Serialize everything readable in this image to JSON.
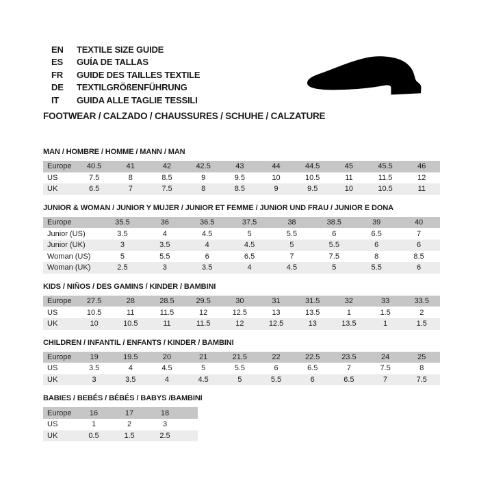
{
  "header": {
    "languages": [
      {
        "code": "EN",
        "text": "TEXTILE SIZE GUIDE"
      },
      {
        "code": "ES",
        "text": "GUÍA DE TALLAS"
      },
      {
        "code": "FR",
        "text": "GUIDE DES TAILLES TEXTILE"
      },
      {
        "code": "DE",
        "text": "TEXTILGRÖßENFÜHRUNG"
      },
      {
        "code": "IT",
        "text": "GUIDA ALLE TAGLIE TESSILI"
      }
    ],
    "category_heading": "FOOTWEAR / CALZADO / CHAUSSURES / SCHUHE / CALZATURE",
    "shoe_icon": "dress-shoe-silhouette"
  },
  "colors": {
    "background": "#ffffff",
    "text": "#1a1a1a",
    "header_row_bg": "#c6c6c6",
    "stripe_row_bg": "#ececec",
    "shoe": "#000000"
  },
  "tables": [
    {
      "title": "MAN / HOMBRE / HOMME / MANN / MAN",
      "rows": [
        {
          "label": "Europe",
          "values": [
            "40.5",
            "41",
            "42",
            "42.5",
            "43",
            "44",
            "44.5",
            "45",
            "45.5",
            "46"
          ]
        },
        {
          "label": "US",
          "values": [
            "7.5",
            "8",
            "8.5",
            "9",
            "9.5",
            "10",
            "10.5",
            "11",
            "11.5",
            "12"
          ]
        },
        {
          "label": "UK",
          "values": [
            "6.5",
            "7",
            "7.5",
            "8",
            "8.5",
            "9",
            "9.5",
            "10",
            "10.5",
            "11"
          ]
        }
      ]
    },
    {
      "title": "JUNIOR & WOMAN / JUNIOR Y MUJER / JUNIOR ET FEMME / JUNIOR UND FRAU / JUNIOR E DONA",
      "rows": [
        {
          "label": "Europe",
          "values": [
            "35.5",
            "36",
            "36.5",
            "37.5",
            "38",
            "38.5",
            "39",
            "40"
          ]
        },
        {
          "label": "Junior (US)",
          "values": [
            "3.5",
            "4",
            "4.5",
            "5",
            "5.5",
            "6",
            "6.5",
            "7"
          ]
        },
        {
          "label": "Junior (UK)",
          "values": [
            "3",
            "3.5",
            "4",
            "4.5",
            "5",
            "5.5",
            "6",
            "6"
          ]
        },
        {
          "label": "Woman (US)",
          "values": [
            "5",
            "5.5",
            "6",
            "6.5",
            "7",
            "7.5",
            "8",
            "8.5"
          ]
        },
        {
          "label": "Woman (UK)",
          "values": [
            "2.5",
            "3",
            "3.5",
            "4",
            "4.5",
            "5",
            "5.5",
            "6"
          ]
        }
      ]
    },
    {
      "title": "KIDS / NIÑOS / DES GAMINS / KINDER / BAMBINI",
      "rows": [
        {
          "label": "Europe",
          "values": [
            "27.5",
            "28",
            "28.5",
            "29.5",
            "30",
            "31",
            "31.5",
            "32",
            "33",
            "33.5"
          ]
        },
        {
          "label": "US",
          "values": [
            "10.5",
            "11",
            "11.5",
            "12",
            "12.5",
            "13",
            "13.5",
            "1",
            "1.5",
            "2"
          ]
        },
        {
          "label": "UK",
          "values": [
            "10",
            "10.5",
            "11",
            "11.5",
            "12",
            "12.5",
            "13",
            "13.5",
            "1",
            "1.5"
          ]
        }
      ]
    },
    {
      "title": "CHILDREN / INFANTIL / ENFANTS / KINDER / BAMBINI",
      "rows": [
        {
          "label": "Europe",
          "values": [
            "19",
            "19.5",
            "20",
            "21",
            "21.5",
            "22",
            "22.5",
            "23.5",
            "24",
            "25"
          ]
        },
        {
          "label": "US",
          "values": [
            "3.5",
            "4",
            "4.5",
            "5",
            "5.5",
            "6",
            "6.5",
            "7",
            "7.5",
            "8"
          ]
        },
        {
          "label": "UK",
          "values": [
            "3",
            "3.5",
            "4",
            "4.5",
            "5",
            "5.5",
            "6",
            "6.5",
            "7",
            "7.5"
          ]
        }
      ]
    },
    {
      "title": "BABIES  / BEBÉS / BÉBÉS / BABYS /BAMBINI",
      "rows": [
        {
          "label": "Europe",
          "values": [
            "16",
            "17",
            "18"
          ]
        },
        {
          "label": "US",
          "values": [
            "1",
            "2",
            "3"
          ]
        },
        {
          "label": "UK",
          "values": [
            "0.5",
            "1.5",
            "2.5"
          ]
        }
      ]
    }
  ]
}
